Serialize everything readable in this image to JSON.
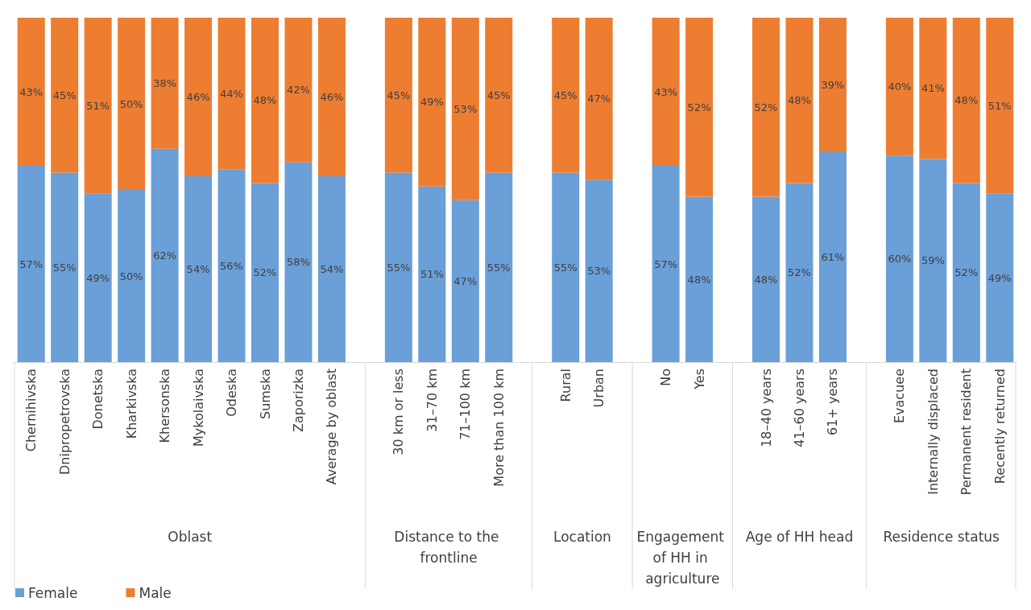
{
  "chart_data": {
    "type": "bar",
    "stacked": true,
    "categories": [
      "Chernihivska",
      "Dnipropetrovska",
      "Donetska",
      "Kharkivska",
      "Khersonska",
      "Mykolaivska",
      "Odeska",
      "Sumska",
      "Zaporizka",
      "Average by oblast",
      null,
      "30 km or less",
      "31–70 km",
      "71–100 km",
      "More than 100 km",
      null,
      "Rural",
      "Urban",
      null,
      "No",
      "Yes",
      null,
      "18–40 years",
      "41–60 years",
      "61+ years",
      null,
      "Evacuee",
      "Internally displaced",
      "Permanent resident",
      "Recently returned"
    ],
    "series": [
      {
        "name": "Female",
        "color": "#6a9fd8",
        "values": [
          57,
          55,
          49,
          50,
          62,
          54,
          56,
          52,
          58,
          54,
          null,
          55,
          51,
          47,
          55,
          null,
          55,
          53,
          null,
          57,
          48,
          null,
          48,
          52,
          61,
          null,
          60,
          59,
          52,
          49
        ],
        "value_labels": [
          "57%",
          "55%",
          "49%",
          "50%",
          "62%",
          "54%",
          "56%",
          "52%",
          "58%",
          "54%",
          null,
          "55%",
          "51%",
          "47%",
          "55%",
          null,
          "55%",
          "53%",
          null,
          "57%",
          "48%",
          null,
          "48%",
          "52%",
          "61%",
          null,
          "60%",
          "59%",
          "52%",
          "49%"
        ]
      },
      {
        "name": "Male",
        "color": "#ed7d31",
        "values": [
          43,
          45,
          51,
          50,
          38,
          46,
          44,
          48,
          42,
          46,
          null,
          45,
          49,
          53,
          45,
          null,
          45,
          47,
          null,
          43,
          52,
          null,
          52,
          48,
          39,
          null,
          40,
          41,
          48,
          51
        ],
        "value_labels": [
          "43%",
          "45%",
          "51%",
          "50%",
          "38%",
          "46%",
          "44%",
          "48%",
          "42%",
          "46%",
          null,
          "45%",
          "49%",
          "53%",
          "45%",
          null,
          "45%",
          "47%",
          null,
          "43%",
          "52%",
          null,
          "52%",
          "48%",
          "39%",
          null,
          "40%",
          "41%",
          "48%",
          "51%"
        ]
      }
    ],
    "annotations": [
      "Oblast",
      "Distance to the frontline",
      "Location",
      "Engagement of HH in agriculture",
      "Age of HH head",
      "Residence status"
    ],
    "legend": "bottom left",
    "tick_labels": "x"
  }
}
